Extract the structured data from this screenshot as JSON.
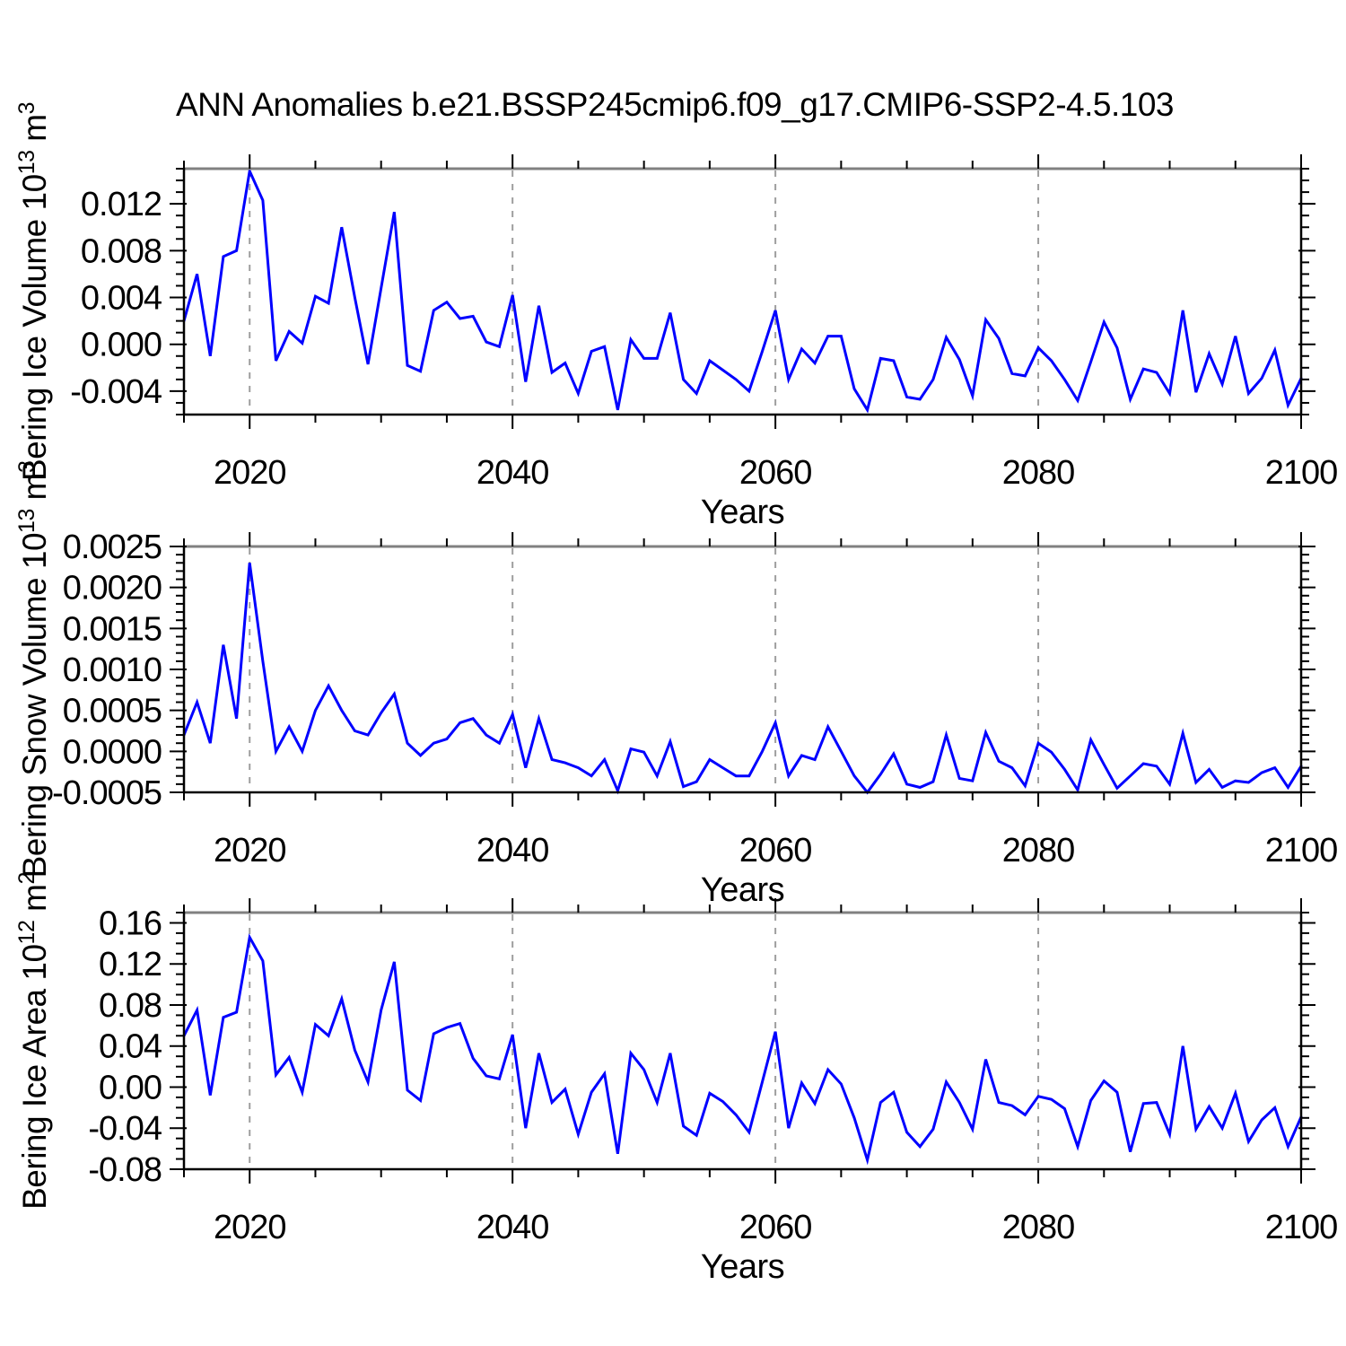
{
  "title": "ANN Anomalies b.e21.BSSP245cmip6.f09_g17.CMIP6-SSP2-4.5.103",
  "colors": {
    "line": "#0000ff",
    "frame": "#000000",
    "top_frame": "#808080",
    "gridline": "#9e9e9e",
    "tick": "#000000",
    "text": "#000000"
  },
  "x_axis": {
    "label": "Years",
    "start_year": 2015,
    "end_year": 2100,
    "major_ticks": [
      2020,
      2040,
      2060,
      2080,
      2100
    ],
    "minor_step": 5,
    "gridline_years": [
      2020,
      2040,
      2060,
      2080
    ]
  },
  "chart_data": [
    {
      "type": "line",
      "name": "bering-ice-volume",
      "xlabel": "Years",
      "ylabel": {
        "text": "Bering Ice Volume 10",
        "exp": "13",
        "unit": " m",
        "unit_exp": "3"
      },
      "ylim": [
        -0.006,
        0.015
      ],
      "ytick_labels": [
        "0.012",
        "0.008",
        "0.004",
        "0.000",
        "-0.004"
      ],
      "ytick_values": [
        0.012,
        0.008,
        0.004,
        0.0,
        -0.004
      ],
      "yminor_step": 0.001,
      "x": [
        2015,
        2016,
        2017,
        2018,
        2019,
        2020,
        2021,
        2022,
        2023,
        2024,
        2025,
        2026,
        2027,
        2028,
        2029,
        2030,
        2031,
        2032,
        2033,
        2034,
        2035,
        2036,
        2037,
        2038,
        2039,
        2040,
        2041,
        2042,
        2043,
        2044,
        2045,
        2046,
        2047,
        2048,
        2049,
        2050,
        2051,
        2052,
        2053,
        2054,
        2055,
        2056,
        2057,
        2058,
        2059,
        2060,
        2061,
        2062,
        2063,
        2064,
        2065,
        2066,
        2067,
        2068,
        2069,
        2070,
        2071,
        2072,
        2073,
        2074,
        2075,
        2076,
        2077,
        2078,
        2079,
        2080,
        2081,
        2082,
        2083,
        2084,
        2085,
        2086,
        2087,
        2088,
        2089,
        2090,
        2091,
        2092,
        2093,
        2094,
        2095,
        2096,
        2097,
        2098,
        2099,
        2100
      ],
      "values": [
        0.002,
        0.006,
        -0.001,
        0.0075,
        0.008,
        0.0148,
        0.0123,
        -0.0014,
        0.0011,
        0.0001,
        0.0041,
        0.0035,
        0.01,
        0.004,
        -0.0017,
        0.0048,
        0.0113,
        -0.0018,
        -0.0023,
        0.0029,
        0.0036,
        0.0022,
        0.0024,
        0.0002,
        -0.0002,
        0.0042,
        -0.0032,
        0.0033,
        -0.0024,
        -0.0016,
        -0.0042,
        -0.0006,
        -0.0002,
        -0.0056,
        0.0004,
        -0.0012,
        -0.0012,
        0.0027,
        -0.003,
        -0.0042,
        -0.0014,
        -0.0022,
        -0.003,
        -0.004,
        -0.0006,
        0.0029,
        -0.003,
        -0.0004,
        -0.0016,
        0.0007,
        0.0007,
        -0.0038,
        -0.0056,
        -0.0012,
        -0.0014,
        -0.0045,
        -0.0047,
        -0.003,
        0.0006,
        -0.0013,
        -0.0044,
        0.0021,
        0.0005,
        -0.0025,
        -0.0027,
        -0.0003,
        -0.0014,
        -0.003,
        -0.0048,
        -0.0015,
        0.0019,
        -0.0003,
        -0.0047,
        -0.0021,
        -0.0024,
        -0.0042,
        0.0029,
        -0.0041,
        -0.0008,
        -0.0034,
        0.0007,
        -0.0042,
        -0.0029,
        -0.0005,
        -0.0052,
        -0.0029
      ]
    },
    {
      "type": "line",
      "name": "bering-snow-volume",
      "xlabel": "Years",
      "ylabel": {
        "text": "Bering Snow Volume 10",
        "exp": "13",
        "unit": " m",
        "unit_exp": "3"
      },
      "ylim": [
        -0.0005,
        0.0025
      ],
      "ytick_labels": [
        "0.0025",
        "0.0020",
        "0.0015",
        "0.0010",
        "0.0005",
        "0.0000",
        "-0.0005"
      ],
      "ytick_values": [
        0.0025,
        0.002,
        0.0015,
        0.001,
        0.0005,
        0.0,
        -0.0005
      ],
      "yminor_step": 0.0001,
      "x": [
        2015,
        2016,
        2017,
        2018,
        2019,
        2020,
        2021,
        2022,
        2023,
        2024,
        2025,
        2026,
        2027,
        2028,
        2029,
        2030,
        2031,
        2032,
        2033,
        2034,
        2035,
        2036,
        2037,
        2038,
        2039,
        2040,
        2041,
        2042,
        2043,
        2044,
        2045,
        2046,
        2047,
        2048,
        2049,
        2050,
        2051,
        2052,
        2053,
        2054,
        2055,
        2056,
        2057,
        2058,
        2059,
        2060,
        2061,
        2062,
        2063,
        2064,
        2065,
        2066,
        2067,
        2068,
        2069,
        2070,
        2071,
        2072,
        2073,
        2074,
        2075,
        2076,
        2077,
        2078,
        2079,
        2080,
        2081,
        2082,
        2083,
        2084,
        2085,
        2086,
        2087,
        2088,
        2089,
        2090,
        2091,
        2092,
        2093,
        2094,
        2095,
        2096,
        2097,
        2098,
        2099,
        2100
      ],
      "values": [
        0.0002,
        0.0006,
        0.0001,
        0.0013,
        0.0004,
        0.0023,
        0.0011,
        0.0,
        0.0003,
        0.0,
        0.0005,
        0.0008,
        0.0005,
        0.00025,
        0.0002,
        0.00047,
        0.0007,
        0.0001,
        -5e-05,
        0.0001,
        0.00015,
        0.00035,
        0.0004,
        0.0002,
        0.0001,
        0.00045,
        -0.0002,
        0.0004,
        -0.0001,
        -0.00014,
        -0.0002,
        -0.0003,
        -0.0001,
        -0.00048,
        3e-05,
        -1e-05,
        -0.0003,
        0.00012,
        -0.00043,
        -0.00037,
        -0.0001,
        -0.0002,
        -0.0003,
        -0.0003,
        0.0,
        0.00035,
        -0.0003,
        -5e-05,
        -0.0001,
        0.0003,
        0.0,
        -0.0003,
        -0.0005,
        -0.00028,
        -3e-05,
        -0.0004,
        -0.00044,
        -0.00037,
        0.0002,
        -0.00033,
        -0.00036,
        0.00023,
        -0.00012,
        -0.0002,
        -0.00042,
        0.0001,
        -1e-05,
        -0.00022,
        -0.00047,
        0.00014,
        -0.00016,
        -0.00045,
        -0.0003,
        -0.00015,
        -0.00018,
        -0.0004,
        0.00022,
        -0.00038,
        -0.00022,
        -0.00044,
        -0.00036,
        -0.00038,
        -0.00026,
        -0.0002,
        -0.00044,
        -0.00018
      ]
    },
    {
      "type": "line",
      "name": "bering-ice-area",
      "xlabel": "Years",
      "ylabel": {
        "text": "Bering Ice Area 10",
        "exp": "12",
        "unit": " m",
        "unit_exp": "2"
      },
      "ylim": [
        -0.08,
        0.17
      ],
      "ytick_labels": [
        "0.16",
        "0.12",
        "0.08",
        "0.04",
        "0.00",
        "-0.04",
        "-0.08"
      ],
      "ytick_values": [
        0.16,
        0.12,
        0.08,
        0.04,
        0.0,
        -0.04,
        -0.08
      ],
      "yminor_step": 0.01,
      "x": [
        2015,
        2016,
        2017,
        2018,
        2019,
        2020,
        2021,
        2022,
        2023,
        2024,
        2025,
        2026,
        2027,
        2028,
        2029,
        2030,
        2031,
        2032,
        2033,
        2034,
        2035,
        2036,
        2037,
        2038,
        2039,
        2040,
        2041,
        2042,
        2043,
        2044,
        2045,
        2046,
        2047,
        2048,
        2049,
        2050,
        2051,
        2052,
        2053,
        2054,
        2055,
        2056,
        2057,
        2058,
        2059,
        2060,
        2061,
        2062,
        2063,
        2064,
        2065,
        2066,
        2067,
        2068,
        2069,
        2070,
        2071,
        2072,
        2073,
        2074,
        2075,
        2076,
        2077,
        2078,
        2079,
        2080,
        2081,
        2082,
        2083,
        2084,
        2085,
        2086,
        2087,
        2088,
        2089,
        2090,
        2091,
        2092,
        2093,
        2094,
        2095,
        2096,
        2097,
        2098,
        2099,
        2100
      ],
      "values": [
        0.05,
        0.075,
        -0.008,
        0.068,
        0.073,
        0.146,
        0.123,
        0.012,
        0.029,
        -0.005,
        0.061,
        0.05,
        0.086,
        0.036,
        0.005,
        0.075,
        0.122,
        -0.003,
        -0.013,
        0.052,
        0.058,
        0.062,
        0.028,
        0.011,
        0.008,
        0.051,
        -0.04,
        0.033,
        -0.015,
        -0.002,
        -0.046,
        -0.005,
        0.013,
        -0.065,
        0.033,
        0.017,
        -0.015,
        0.033,
        -0.038,
        -0.047,
        -0.006,
        -0.014,
        -0.027,
        -0.044,
        0.005,
        0.054,
        -0.04,
        0.004,
        -0.016,
        0.017,
        0.003,
        -0.03,
        -0.071,
        -0.015,
        -0.005,
        -0.044,
        -0.058,
        -0.041,
        0.005,
        -0.015,
        -0.041,
        0.027,
        -0.015,
        -0.018,
        -0.027,
        -0.009,
        -0.012,
        -0.021,
        -0.058,
        -0.013,
        0.006,
        -0.005,
        -0.063,
        -0.016,
        -0.015,
        -0.046,
        0.04,
        -0.041,
        -0.019,
        -0.04,
        -0.006,
        -0.053,
        -0.032,
        -0.02,
        -0.058,
        -0.029
      ]
    }
  ]
}
